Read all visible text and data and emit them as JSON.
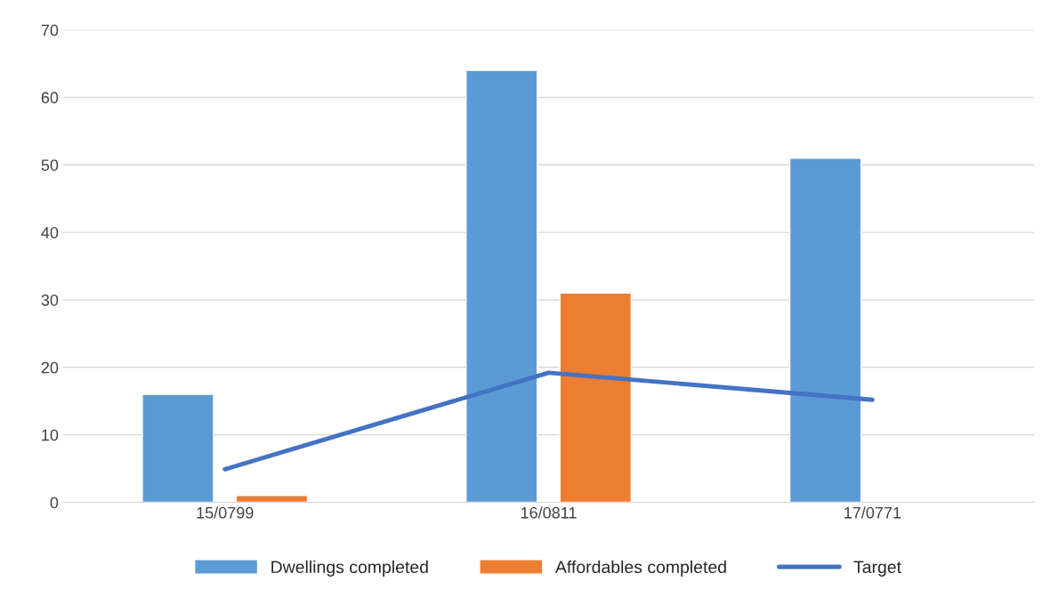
{
  "chart_data": {
    "type": "bar",
    "categories": [
      "15/0799",
      "16/0811",
      "17/0771"
    ],
    "series": [
      {
        "name": "Dwellings completed",
        "color": "#5b9bd5",
        "values": [
          16,
          64,
          51
        ]
      },
      {
        "name": "Affordables completed",
        "color": "#ed7d31",
        "values": [
          1,
          31,
          null
        ]
      },
      {
        "name": "Target",
        "type": "line",
        "color": "#4472c4",
        "values": [
          4.9,
          19.2,
          15.2
        ]
      }
    ],
    "ylim": [
      0,
      70
    ],
    "yticks": [
      0,
      10,
      20,
      30,
      40,
      50,
      60,
      70
    ],
    "grid": "y",
    "legend": "bottom"
  }
}
